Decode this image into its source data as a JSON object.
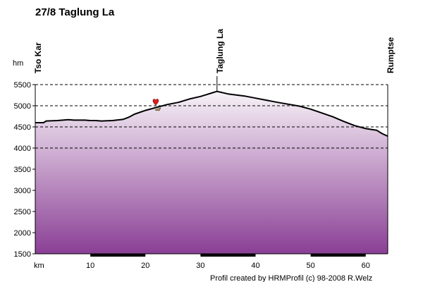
{
  "chart_data": {
    "type": "area",
    "title": "27/8 Taglung La",
    "ylabel": "hm",
    "xlabel": "km",
    "ylim": [
      1500,
      5500
    ],
    "xlim": [
      0,
      64
    ],
    "yticks": [
      1500,
      2000,
      2500,
      3000,
      3500,
      4000,
      4500,
      5000,
      5500
    ],
    "xticks": [
      10,
      20,
      30,
      40,
      50,
      60
    ],
    "gridlines_dashed_at": [
      4000,
      4500,
      5000,
      5500
    ],
    "x": [
      0,
      1.5,
      2,
      4,
      6,
      7,
      9,
      10,
      11,
      12,
      14,
      16,
      17,
      18,
      20,
      22,
      24,
      26,
      28,
      30,
      31,
      32,
      33,
      35,
      38,
      40,
      44,
      48,
      50,
      52,
      54,
      56,
      58,
      60,
      61,
      62,
      63,
      64
    ],
    "y": [
      4600,
      4600,
      4640,
      4650,
      4670,
      4660,
      4660,
      4650,
      4650,
      4640,
      4650,
      4680,
      4730,
      4800,
      4890,
      4960,
      5030,
      5080,
      5160,
      5220,
      5260,
      5300,
      5340,
      5280,
      5230,
      5180,
      5080,
      4990,
      4920,
      4830,
      4740,
      4630,
      4530,
      4460,
      4440,
      4420,
      4340,
      4280
    ],
    "places": [
      {
        "name": "Tso Kar",
        "km": 0
      },
      {
        "name": "Taglung La",
        "km": 33
      },
      {
        "name": "Rumptse",
        "km": 64
      }
    ],
    "marker": {
      "km": 22,
      "elevation": 5000
    },
    "credit": "Profil created by HRMProfil (c) 98-2008 R.Welz"
  },
  "style": {
    "line_color": "#000000",
    "fill_top": "#f7f2f7",
    "fill_bottom": "#8a3f95",
    "marker_color": "#d82020"
  }
}
